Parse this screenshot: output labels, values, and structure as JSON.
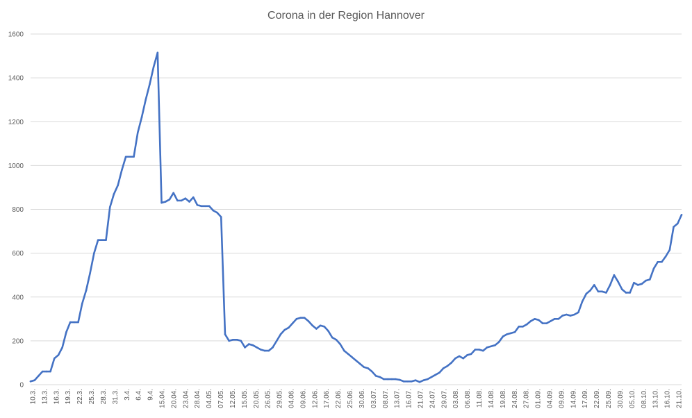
{
  "chart_data": {
    "type": "line",
    "title": "Corona in der Region Hannover",
    "xlabel": "",
    "ylabel": "",
    "ylim": [
      0,
      1600
    ],
    "yticks": [
      0,
      200,
      400,
      600,
      800,
      1000,
      1200,
      1400,
      1600
    ],
    "grid": true,
    "legend": "none",
    "series_color": "#4472c4",
    "x_tick_labels": [
      "10.3.",
      "13.3.",
      "16.3.",
      "19.3.",
      "22.3.",
      "25.3.",
      "28.3.",
      "31.3.",
      "3.4.",
      "6.4.",
      "9.4.",
      "15.04.",
      "20.04.",
      "23.04.",
      "28.04.",
      "04.05.",
      "07.05.",
      "12.05.",
      "15.05.",
      "20.05.",
      "26.05.",
      "29.05.",
      "04.06.",
      "09.06.",
      "12.06.",
      "17.06.",
      "22.06.",
      "25.06.",
      "30.06.",
      "03.07.",
      "08.07.",
      "13.07.",
      "16.07.",
      "21.07.",
      "24.07.",
      "29.07.",
      "03.08.",
      "06.08.",
      "11.08.",
      "14.08.",
      "19.08.",
      "24.08.",
      "27.08.",
      "01.09.",
      "04.09.",
      "09.09.",
      "14.09.",
      "17.09.",
      "22.09.",
      "25.09.",
      "30.09.",
      "05.10.",
      "08.10.",
      "13.10.",
      "16.10.",
      "21.10."
    ],
    "series": [
      {
        "values": [
          15,
          20,
          40,
          60,
          60,
          60,
          120,
          135,
          170,
          240,
          285,
          285,
          285,
          370,
          430,
          510,
          600,
          660,
          660,
          660,
          810,
          870,
          910,
          980,
          1040,
          1040,
          1040,
          1150,
          1220,
          1300,
          1370,
          1450,
          1515,
          830,
          835,
          845,
          875,
          840,
          840,
          850,
          835,
          855,
          820,
          815,
          815,
          815,
          795,
          785,
          765,
          230,
          200,
          205,
          205,
          200,
          170,
          185,
          180,
          170,
          160,
          155,
          155,
          170,
          200,
          230,
          250,
          260,
          280,
          300,
          305,
          305,
          290,
          270,
          255,
          270,
          265,
          245,
          215,
          205,
          185,
          155,
          140,
          125,
          110,
          95,
          80,
          75,
          60,
          40,
          35,
          25,
          25,
          25,
          25,
          22,
          15,
          15,
          15,
          20,
          12,
          20,
          25,
          35,
          45,
          55,
          75,
          85,
          100,
          120,
          130,
          120,
          135,
          140,
          160,
          160,
          155,
          170,
          175,
          180,
          195,
          220,
          230,
          235,
          240,
          265,
          265,
          275,
          290,
          300,
          295,
          280,
          280,
          290,
          300,
          300,
          315,
          320,
          315,
          320,
          330,
          380,
          415,
          430,
          455,
          425,
          425,
          420,
          455,
          500,
          470,
          435,
          420,
          420,
          465,
          455,
          460,
          475,
          480,
          530,
          560,
          560,
          585,
          615,
          720,
          735,
          775
        ]
      }
    ]
  }
}
